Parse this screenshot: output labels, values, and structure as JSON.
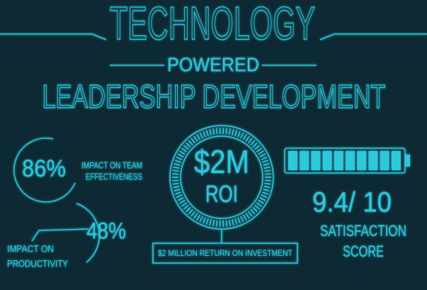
{
  "header": {
    "line1": "TECHNOLOGY",
    "line2": "POWERED",
    "line3": "LEADERSHIP DEVELOPMENT"
  },
  "team": {
    "value": "86%",
    "label1": "IMPACT ON TEAM",
    "label2": "EFFECTIVENESS"
  },
  "productivity": {
    "value": "48%",
    "label1": "IMPACT ON",
    "label2": "PRODUCTIVITY"
  },
  "roi": {
    "value": "$2M",
    "label": "ROI",
    "caption": "$2 MILLION RETURN ON INVESTMENT"
  },
  "satisfaction": {
    "value": "9.4/ 10",
    "label1": "SATISFACTION",
    "label2": "SCORE"
  }
}
